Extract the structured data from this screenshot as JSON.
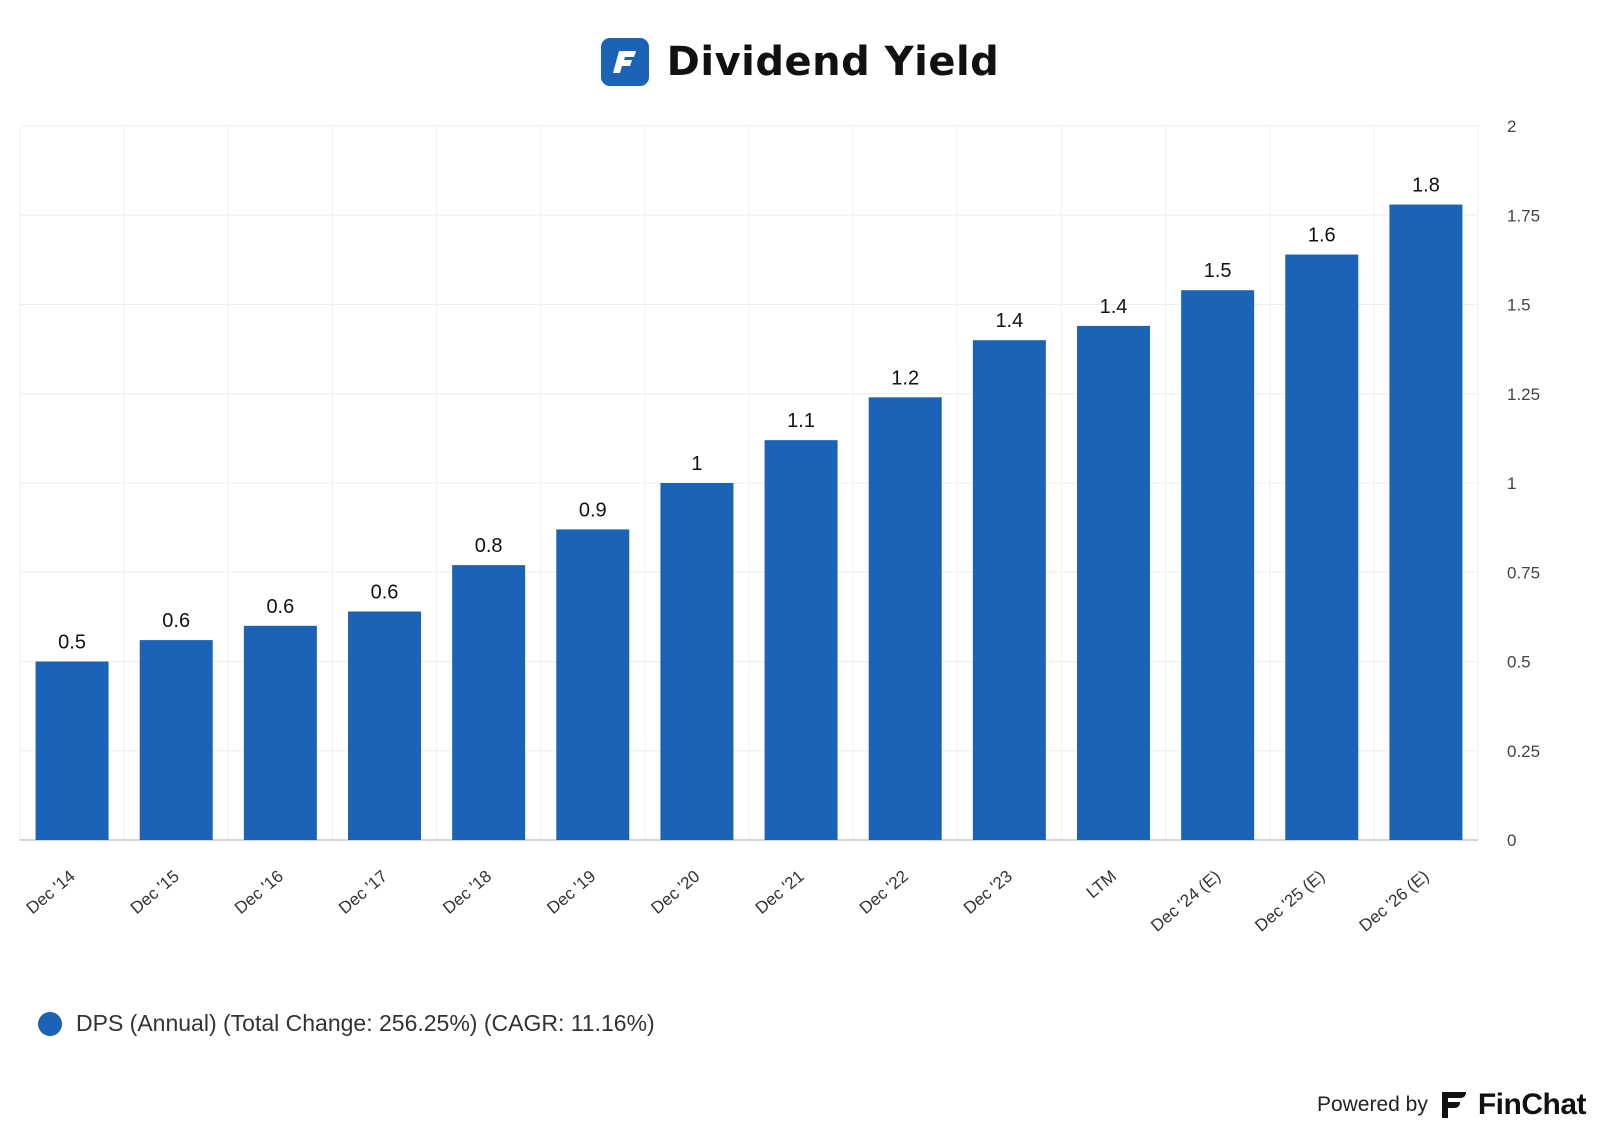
{
  "header": {
    "title": "Dividend Yield",
    "logo_letter": "F"
  },
  "chart_data": {
    "type": "bar",
    "title": "Dividend Yield",
    "categories": [
      "Dec '14",
      "Dec '15",
      "Dec '16",
      "Dec '17",
      "Dec '18",
      "Dec '19",
      "Dec '20",
      "Dec '21",
      "Dec '22",
      "Dec '23",
      "LTM",
      "Dec '24 (E)",
      "Dec '25 (E)",
      "Dec '26 (E)"
    ],
    "series": [
      {
        "name": "DPS (Annual) (Total Change: 256.25%) (CAGR: 11.16%)",
        "values": [
          0.5,
          0.56,
          0.6,
          0.64,
          0.77,
          0.87,
          1.0,
          1.12,
          1.24,
          1.4,
          1.44,
          1.54,
          1.64,
          1.78
        ],
        "data_labels": [
          "0.5",
          "0.6",
          "0.6",
          "0.6",
          "0.8",
          "0.9",
          "1",
          "1.1",
          "1.2",
          "1.4",
          "1.4",
          "1.5",
          "1.6",
          "1.8"
        ],
        "color": "#1a63b7"
      }
    ],
    "yticks": [
      "0",
      "0.25",
      "0.5",
      "0.75",
      "1",
      "1.25",
      "1.5",
      "1.75",
      "2"
    ],
    "ylim": [
      0,
      2
    ],
    "yaxis_side": "right",
    "grid": true,
    "legend_position": "bottom-left"
  },
  "legend": {
    "label": "DPS (Annual) (Total Change: 256.25%) (CAGR: 11.16%)"
  },
  "footer": {
    "powered_by": "Powered by",
    "brand": "FinChat"
  }
}
